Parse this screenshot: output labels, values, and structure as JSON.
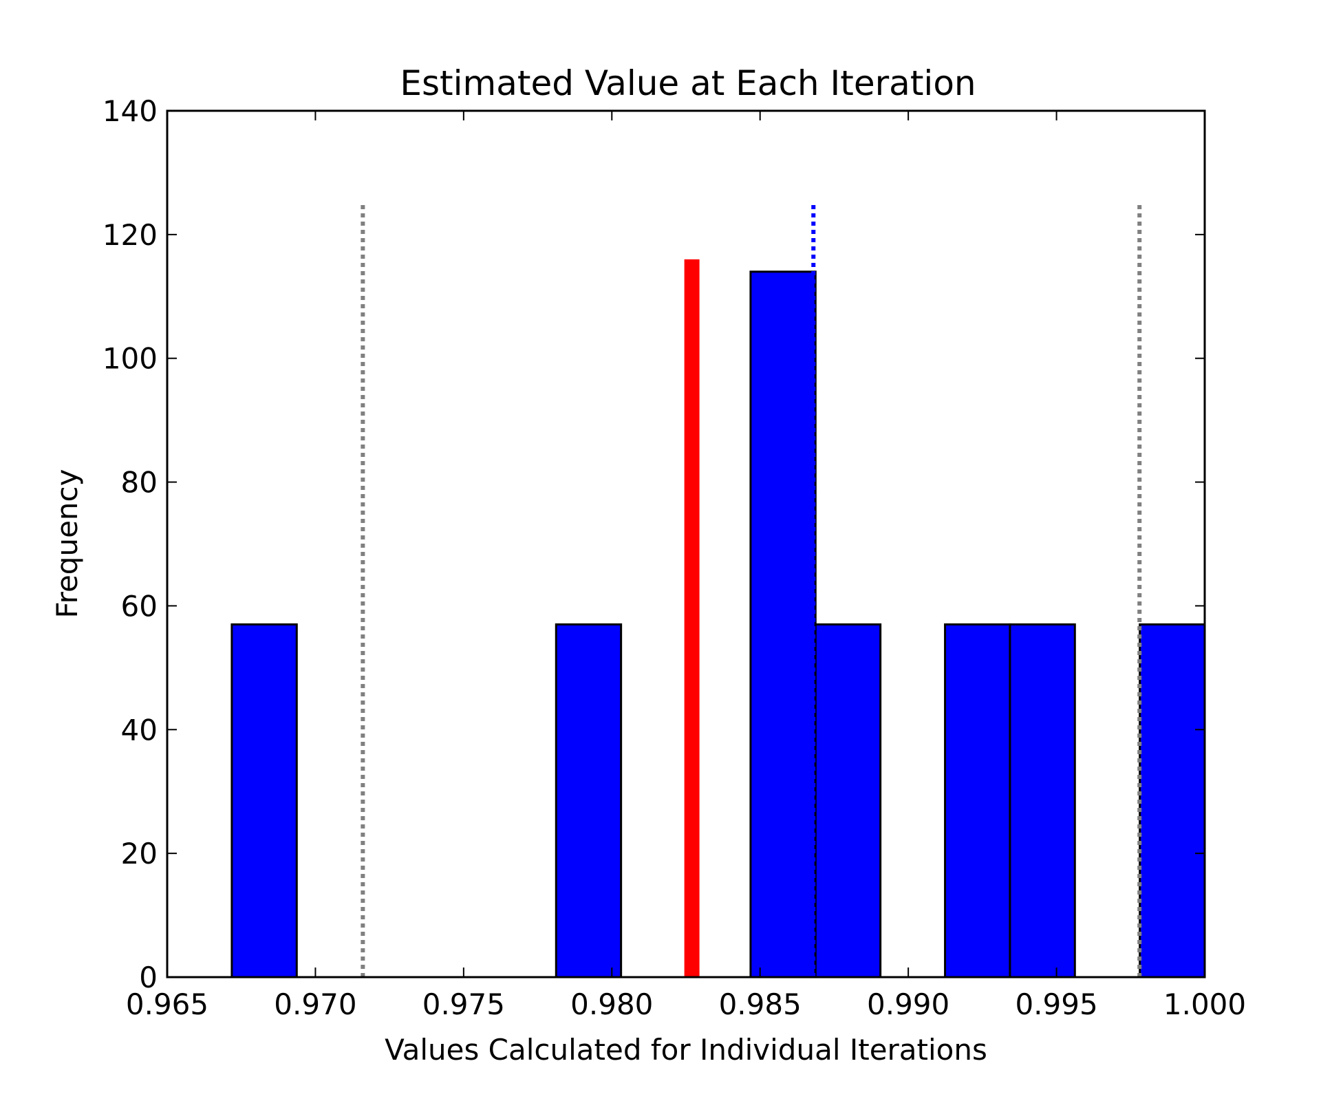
{
  "chart_data": {
    "type": "bar",
    "title": "Estimated Value at Each Iteration",
    "xlabel": "Values Calculated for Individual Iterations",
    "ylabel": "Frequency",
    "xlim": [
      0.965,
      1.0
    ],
    "ylim": [
      0,
      140
    ],
    "xticks": [
      "0.965",
      "0.970",
      "0.975",
      "0.980",
      "0.985",
      "0.990",
      "0.995",
      "1.000"
    ],
    "xtick_values": [
      0.965,
      0.97,
      0.975,
      0.98,
      0.985,
      0.99,
      0.995,
      1.0
    ],
    "yticks": [
      "0",
      "20",
      "40",
      "60",
      "80",
      "100",
      "120",
      "140"
    ],
    "ytick_values": [
      0,
      20,
      40,
      60,
      80,
      100,
      120,
      140
    ],
    "bins": [
      {
        "x0": 0.96718,
        "x1": 0.96937,
        "count": 57
      },
      {
        "x0": 0.96937,
        "x1": 0.97156,
        "count": 0
      },
      {
        "x0": 0.97156,
        "x1": 0.97374,
        "count": 0
      },
      {
        "x0": 0.97374,
        "x1": 0.97593,
        "count": 0
      },
      {
        "x0": 0.97593,
        "x1": 0.97812,
        "count": 0
      },
      {
        "x0": 0.97812,
        "x1": 0.98031,
        "count": 57
      },
      {
        "x0": 0.98031,
        "x1": 0.98249,
        "count": 0
      },
      {
        "x0": 0.98249,
        "x1": 0.98468,
        "count": 0
      },
      {
        "x0": 0.98468,
        "x1": 0.98687,
        "count": 114
      },
      {
        "x0": 0.98687,
        "x1": 0.98906,
        "count": 57
      },
      {
        "x0": 0.98906,
        "x1": 0.99124,
        "count": 0
      },
      {
        "x0": 0.99124,
        "x1": 0.99343,
        "count": 57
      },
      {
        "x0": 0.99343,
        "x1": 0.99562,
        "count": 57
      },
      {
        "x0": 0.99562,
        "x1": 0.99781,
        "count": 0
      },
      {
        "x0": 0.99781,
        "x1": 1.0,
        "count": 57
      }
    ],
    "reference_lines": [
      {
        "x": 0.9716,
        "y_top": 125,
        "color": "#808080",
        "style": "dotted"
      },
      {
        "x": 0.9978,
        "y_top": 125,
        "color": "#808080",
        "style": "dotted"
      },
      {
        "x": 0.9868,
        "y_top": 125,
        "color": "#0000ff",
        "style": "dotted"
      },
      {
        "x": 0.9827,
        "y_top": 116,
        "color": "#ff0000",
        "style": "solid"
      }
    ],
    "colors": {
      "bar_fill": "#0000ff",
      "bar_edge": "#000000",
      "gray_line": "#808080",
      "blue_line": "#0000ff",
      "red_line": "#ff0000"
    },
    "grid": false,
    "legend": "none"
  }
}
